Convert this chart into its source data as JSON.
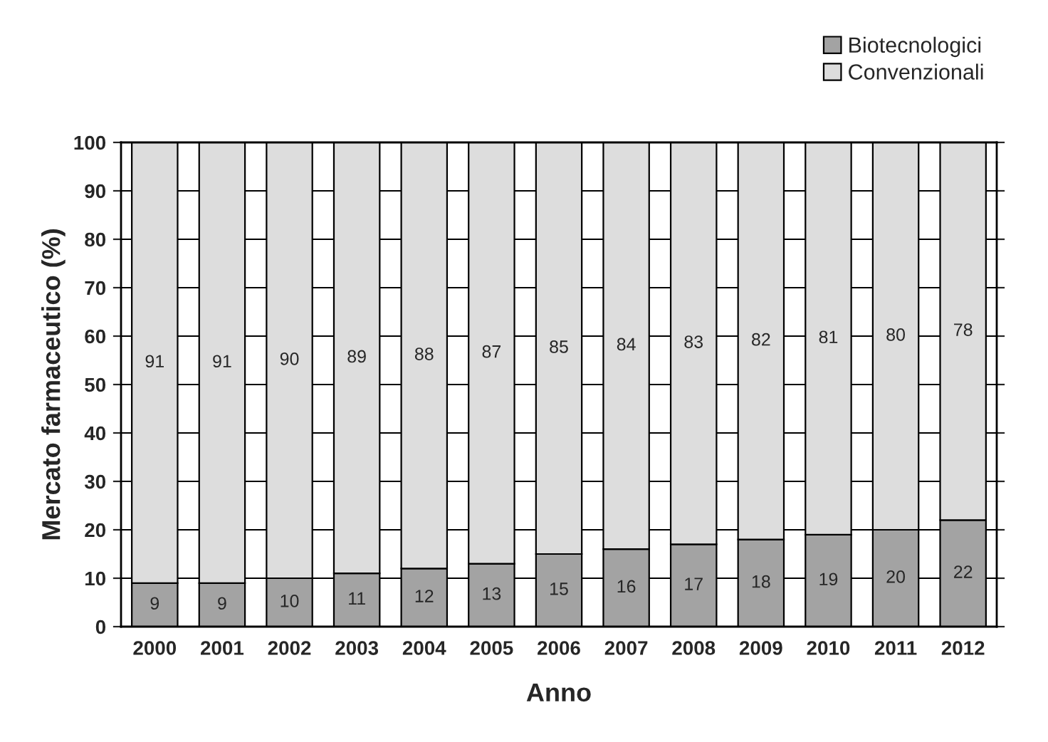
{
  "chart_data": {
    "type": "bar",
    "stacked": true,
    "xlabel": "Anno",
    "ylabel": "Mercato farmaceutico (%)",
    "categories": [
      "2000",
      "2001",
      "2002",
      "2003",
      "2004",
      "2005",
      "2006",
      "2007",
      "2008",
      "2009",
      "2010",
      "2011",
      "2012"
    ],
    "series": [
      {
        "name": "Biotecnologici",
        "color": "#a3a3a3",
        "values": [
          9,
          9,
          10,
          11,
          12,
          13,
          15,
          16,
          17,
          18,
          19,
          20,
          22
        ]
      },
      {
        "name": "Convenzionali",
        "color": "#dddddd",
        "values": [
          91,
          91,
          90,
          89,
          88,
          87,
          85,
          84,
          83,
          82,
          81,
          80,
          78
        ]
      }
    ],
    "ylim": [
      0,
      100
    ],
    "yticks": [
      0,
      10,
      20,
      30,
      40,
      50,
      60,
      70,
      80,
      90,
      100
    ],
    "grid": "y",
    "legend": "top right",
    "data_labels": true
  }
}
